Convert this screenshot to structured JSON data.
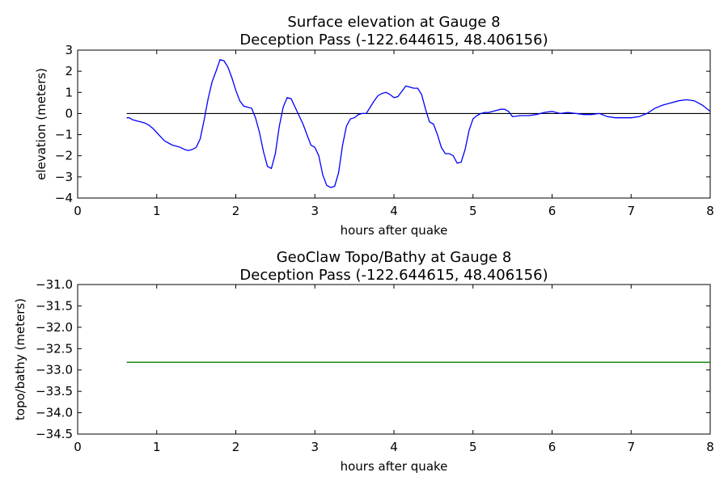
{
  "chart_data": [
    {
      "type": "line",
      "title": "Surface elevation at Gauge 8",
      "subtitle": "Deception Pass  (-122.644615, 48.406156)",
      "xlabel": "hours after quake",
      "ylabel": "elevation (meters)",
      "xlim": [
        0,
        8
      ],
      "ylim": [
        -4,
        3
      ],
      "xticks": [
        "0",
        "1",
        "2",
        "3",
        "4",
        "5",
        "6",
        "7",
        "8"
      ],
      "yticks": [
        "3",
        "2",
        "1",
        "0",
        "−1",
        "−2",
        "−3",
        "−4"
      ],
      "grid": false,
      "reference_line": {
        "y": 0,
        "x": [
          0.62,
          8
        ],
        "color": "#000000"
      },
      "series": [
        {
          "color": "#0000ff",
          "x": [
            0.62,
            0.65,
            0.7,
            0.75,
            0.8,
            0.85,
            0.9,
            0.95,
            1.0,
            1.05,
            1.1,
            1.15,
            1.2,
            1.25,
            1.3,
            1.35,
            1.4,
            1.45,
            1.5,
            1.55,
            1.6,
            1.65,
            1.7,
            1.75,
            1.8,
            1.85,
            1.9,
            1.95,
            2.0,
            2.05,
            2.1,
            2.15,
            2.2,
            2.25,
            2.3,
            2.35,
            2.4,
            2.45,
            2.5,
            2.55,
            2.6,
            2.65,
            2.7,
            2.75,
            2.8,
            2.85,
            2.9,
            2.95,
            3.0,
            3.05,
            3.1,
            3.15,
            3.2,
            3.25,
            3.3,
            3.35,
            3.4,
            3.45,
            3.5,
            3.55,
            3.6,
            3.65,
            3.7,
            3.75,
            3.8,
            3.85,
            3.9,
            3.95,
            4.0,
            4.05,
            4.1,
            4.15,
            4.2,
            4.25,
            4.3,
            4.35,
            4.4,
            4.45,
            4.5,
            4.55,
            4.6,
            4.65,
            4.7,
            4.75,
            4.8,
            4.85,
            4.9,
            4.95,
            5.0,
            5.05,
            5.1,
            5.15,
            5.2,
            5.25,
            5.3,
            5.35,
            5.4,
            5.45,
            5.5,
            5.6,
            5.7,
            5.8,
            5.9,
            6.0,
            6.1,
            6.2,
            6.3,
            6.4,
            6.5,
            6.6,
            6.7,
            6.8,
            6.9,
            7.0,
            7.1,
            7.2,
            7.3,
            7.4,
            7.5,
            7.6,
            7.7,
            7.8,
            7.9,
            8.0
          ],
          "y": [
            -0.2,
            -0.2,
            -0.3,
            -0.35,
            -0.4,
            -0.45,
            -0.55,
            -0.7,
            -0.9,
            -1.1,
            -1.3,
            -1.4,
            -1.5,
            -1.55,
            -1.6,
            -1.7,
            -1.75,
            -1.7,
            -1.6,
            -1.2,
            -0.3,
            0.7,
            1.5,
            2.0,
            2.55,
            2.5,
            2.2,
            1.7,
            1.1,
            0.6,
            0.35,
            0.3,
            0.25,
            -0.2,
            -0.9,
            -1.8,
            -2.5,
            -2.6,
            -1.9,
            -0.6,
            0.3,
            0.75,
            0.7,
            0.3,
            -0.1,
            -0.5,
            -1.0,
            -1.5,
            -1.6,
            -2.0,
            -2.9,
            -3.4,
            -3.5,
            -3.45,
            -2.8,
            -1.5,
            -0.6,
            -0.25,
            -0.2,
            -0.05,
            0.0,
            0.0,
            0.3,
            0.6,
            0.85,
            0.95,
            1.0,
            0.9,
            0.75,
            0.8,
            1.05,
            1.3,
            1.25,
            1.2,
            1.2,
            0.9,
            0.2,
            -0.4,
            -0.5,
            -1.0,
            -1.6,
            -1.9,
            -1.9,
            -2.0,
            -2.35,
            -2.3,
            -1.7,
            -0.8,
            -0.25,
            -0.1,
            0.0,
            0.05,
            0.05,
            0.1,
            0.15,
            0.2,
            0.2,
            0.1,
            -0.15,
            -0.1,
            -0.1,
            -0.05,
            0.05,
            0.1,
            0.0,
            0.05,
            0.0,
            -0.05,
            -0.05,
            0.0,
            -0.15,
            -0.2,
            -0.2,
            -0.2,
            -0.15,
            0.0,
            0.25,
            0.4,
            0.5,
            0.6,
            0.65,
            0.6,
            0.4,
            0.1
          ]
        }
      ]
    },
    {
      "type": "line",
      "title": "GeoClaw Topo/Bathy at Gauge 8",
      "subtitle": "Deception Pass  (-122.644615, 48.406156)",
      "xlabel": "hours after quake",
      "ylabel": "topo/bathy (meters)",
      "xlim": [
        0,
        8
      ],
      "ylim": [
        -34.5,
        -31.0
      ],
      "xticks": [
        "0",
        "1",
        "2",
        "3",
        "4",
        "5",
        "6",
        "7",
        "8"
      ],
      "yticks": [
        "−31.0",
        "−31.5",
        "−32.0",
        "−32.5",
        "−33.0",
        "−33.5",
        "−34.0",
        "−34.5"
      ],
      "grid": false,
      "series": [
        {
          "color": "#008000",
          "x": [
            0.62,
            8.0
          ],
          "y": [
            -32.82,
            -32.82
          ]
        }
      ]
    }
  ]
}
